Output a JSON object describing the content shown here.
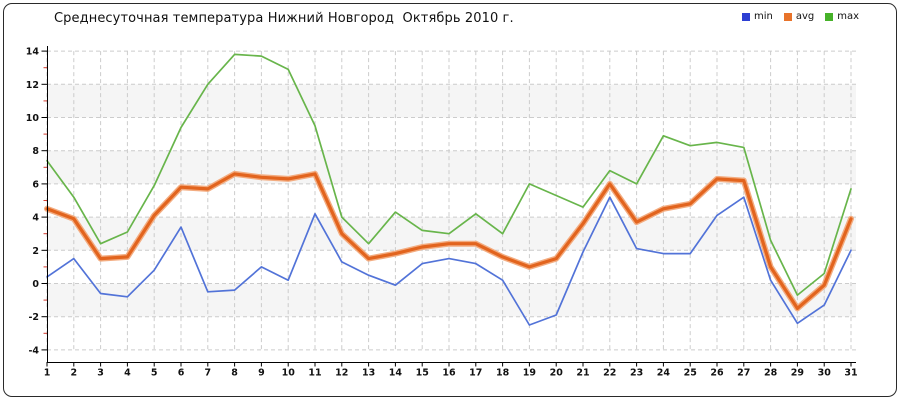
{
  "title": "Среднесуточная температура Нижний Новгород  Октябрь 2010 г.",
  "legend": [
    {
      "label": "min",
      "color": "#2d3fd3"
    },
    {
      "label": "avg",
      "color": "#e8732a"
    },
    {
      "label": "max",
      "color": "#46b229"
    }
  ],
  "chart_data": {
    "type": "line",
    "title": "Среднесуточная температура Нижний Новгород  Октябрь 2010 г.",
    "xlabel": "",
    "ylabel": "",
    "x": [
      1,
      2,
      3,
      4,
      5,
      6,
      7,
      8,
      9,
      10,
      11,
      12,
      13,
      14,
      15,
      16,
      17,
      18,
      19,
      20,
      21,
      22,
      23,
      24,
      25,
      26,
      27,
      28,
      29,
      30,
      31
    ],
    "series": [
      {
        "name": "min",
        "color": "#5273d8",
        "values": [
          0.4,
          1.5,
          -0.6,
          -0.8,
          0.8,
          3.4,
          -0.5,
          -0.4,
          1.0,
          0.2,
          4.2,
          1.3,
          0.5,
          -0.1,
          1.2,
          1.5,
          1.2,
          0.2,
          -2.5,
          -1.9,
          1.9,
          5.2,
          2.1,
          1.8,
          1.8,
          4.1,
          5.2,
          0.2,
          -2.4,
          -1.3,
          2.0
        ]
      },
      {
        "name": "avg",
        "color": "#e2641e",
        "halo_color": "#f3ac80",
        "values": [
          4.5,
          3.9,
          1.5,
          1.6,
          4.1,
          5.8,
          5.7,
          6.6,
          6.4,
          6.3,
          6.6,
          3.0,
          1.5,
          1.8,
          2.2,
          2.4,
          2.4,
          1.6,
          1.0,
          1.5,
          3.6,
          6.0,
          3.7,
          4.5,
          4.8,
          6.3,
          6.2,
          1.0,
          -1.5,
          -0.1,
          3.9
        ]
      },
      {
        "name": "max",
        "color": "#68b54b",
        "values": [
          7.4,
          5.2,
          2.4,
          3.1,
          5.9,
          9.4,
          12.0,
          13.8,
          13.7,
          12.9,
          9.5,
          4.0,
          2.4,
          4.3,
          3.2,
          3.0,
          4.2,
          3.0,
          6.0,
          5.3,
          4.6,
          6.8,
          6.0,
          8.9,
          8.3,
          8.5,
          8.2,
          2.6,
          -0.7,
          0.6,
          5.7
        ]
      }
    ],
    "ylim": [
      -4,
      14
    ],
    "y_ticks": [
      14,
      12,
      10,
      8,
      6,
      4,
      2,
      0,
      -2,
      -4
    ],
    "y_minor_ticks": [
      13,
      11,
      9,
      7,
      5,
      3,
      1,
      -1,
      -3
    ],
    "x_ticks": [
      1,
      2,
      3,
      4,
      5,
      6,
      7,
      8,
      9,
      10,
      11,
      12,
      13,
      14,
      15,
      16,
      17,
      18,
      19,
      20,
      21,
      22,
      23,
      24,
      25,
      26,
      27,
      28,
      29,
      30,
      31
    ],
    "grid": true,
    "band_color": "#f5f5f5",
    "gridline_color": "#cccccc",
    "axis_color": "#000000",
    "minor_tick_color": "#d23b2e",
    "legend_position": "top-right"
  }
}
